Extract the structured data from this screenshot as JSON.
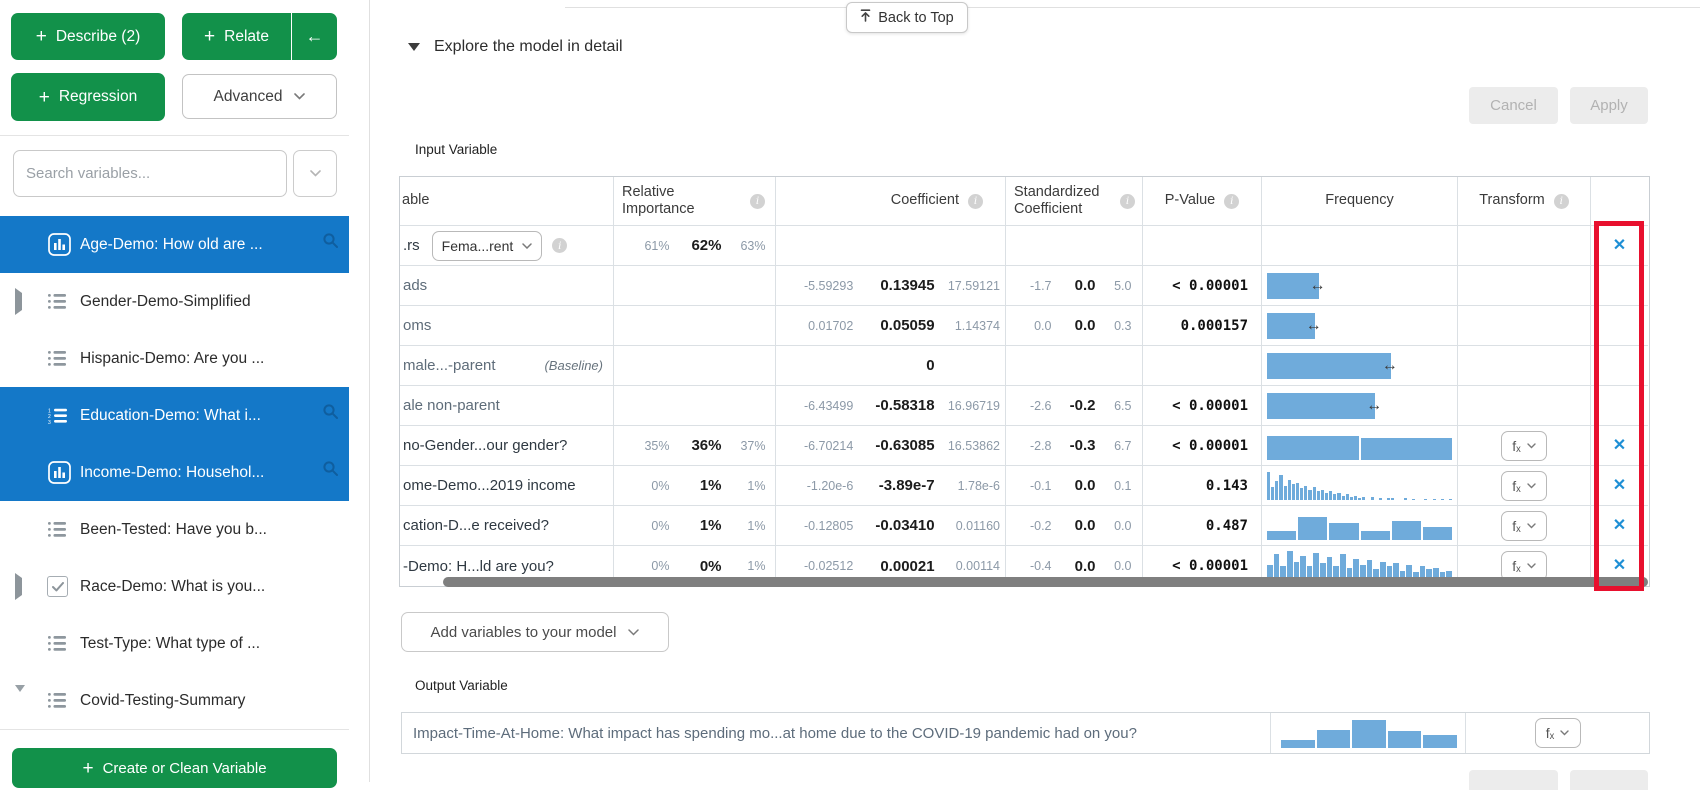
{
  "icons": {
    "plus": "+",
    "back_arrow": "←",
    "close": "✕",
    "error_bar": "↔",
    "fx": "fₓ",
    "info": "i"
  },
  "colors": {
    "accent_green": "#12914A",
    "selection_blue": "#1478C8",
    "histogram_blue": "#6FABDB",
    "highlight_red": "#E8102E",
    "remove_x_blue": "#1E8FD5"
  },
  "sidebar": {
    "describe_label": "Describe (2)",
    "relate_label": "Relate",
    "regression_label": "Regression",
    "advanced_label": "Advanced",
    "search_placeholder": "Search variables...",
    "create_label": "Create or Clean Variable",
    "items": [
      {
        "label": "Age-Demo: How old are ...",
        "icon": "bar-chart",
        "selected": true
      },
      {
        "label": "Gender-Demo-Simplified",
        "icon": "list",
        "expander": "right"
      },
      {
        "label": "Hispanic-Demo: Are you ...",
        "icon": "list"
      },
      {
        "label": "Education-Demo: What i...",
        "icon": "ordered-list",
        "selected": true
      },
      {
        "label": "Income-Demo: Househol...",
        "icon": "bar-chart",
        "selected": true
      },
      {
        "label": "Been-Tested: Have you b...",
        "icon": "list"
      },
      {
        "label": "Race-Demo: What is you...",
        "icon": "checkbox-checked",
        "expander": "right"
      },
      {
        "label": "Test-Type: What type of ...",
        "icon": "list"
      },
      {
        "label": "Covid-Testing-Summary",
        "icon": "list",
        "expander": "down"
      }
    ]
  },
  "main": {
    "back_to_top": "Back to Top",
    "section_title": "Explore the model in detail",
    "cancel_label": "Cancel",
    "apply_label": "Apply",
    "input_variable_label": "Input Variable",
    "add_variables_label": "Add variables to your model",
    "output_variable_label": "Output Variable",
    "table": {
      "headers": {
        "variable": "able",
        "relative_importance": "Relative Importance",
        "coefficient": "Coefficient",
        "standardized_coefficient": "Standardized Coefficient",
        "p_value": "P-Value",
        "frequency": "Frequency",
        "transform": "Transform"
      },
      "rows": [
        {
          "label": ".rs",
          "dropdown_value": "Fema...rent",
          "ri": [
            "61%",
            "62%",
            "63%"
          ]
        },
        {
          "label": "ads",
          "coef": [
            "-5.59293",
            "0.13945",
            "17.59121"
          ],
          "std": [
            "-1.7",
            "0.0",
            "5.0"
          ],
          "p": "< 0.00001",
          "bar": {
            "width": 0.29
          }
        },
        {
          "label": "oms",
          "coef": [
            "0.01702",
            "0.05059",
            "1.14374"
          ],
          "std": [
            "0.0",
            "0.0",
            "0.3"
          ],
          "p": "0.000157",
          "bar": {
            "width": 0.27
          }
        },
        {
          "label": "male...-parent",
          "baseline": "(Baseline)",
          "coef_mid": "0",
          "bar": {
            "width": 0.66
          }
        },
        {
          "label": "ale non-parent",
          "coef": [
            "-6.43499",
            "-0.58318",
            "16.96719"
          ],
          "std": [
            "-2.6",
            "-0.2",
            "6.5"
          ],
          "p": "< 0.00001",
          "bar": {
            "width": 0.58
          }
        },
        {
          "label": "no-Gender...our gender?",
          "ri": [
            "35%",
            "36%",
            "37%"
          ],
          "coef": [
            "-6.70214",
            "-0.63085",
            "16.53862"
          ],
          "std": [
            "-2.8",
            "-0.3",
            "6.7"
          ],
          "p": "< 0.00001",
          "hist": [
            0.82,
            0.76
          ]
        },
        {
          "label": "ome-Demo...2019 income",
          "ri": [
            "0%",
            "1%",
            "1%"
          ],
          "coef": [
            "-1.20e-6",
            "-3.89e-7",
            "1.78e-6"
          ],
          "std": [
            "-0.1",
            "0.0",
            "0.1"
          ],
          "p": "0.143",
          "hist": [
            0.95,
            0.45,
            0.65,
            0.85,
            0.5,
            0.7,
            0.55,
            0.6,
            0.4,
            0.5,
            0.35,
            0.45,
            0.3,
            0.35,
            0.25,
            0.3,
            0.2,
            0.25,
            0.15,
            0.2,
            0.1,
            0.15,
            0.08,
            0.12,
            0,
            0.1,
            0,
            0.08,
            0,
            0.06,
            0.08,
            0,
            0,
            0.06,
            0,
            0.05,
            0,
            0,
            0.05,
            0,
            0.04,
            0,
            0.04,
            0,
            0.03
          ]
        },
        {
          "label": "cation-D...e received?",
          "ri": [
            "0%",
            "1%",
            "1%"
          ],
          "coef": [
            "-0.12805",
            "-0.03410",
            "0.01160"
          ],
          "std": [
            "-0.2",
            "0.0",
            "0.0"
          ],
          "p": "0.487",
          "hist": [
            0.32,
            0.8,
            0.58,
            0.3,
            0.65,
            0.45
          ]
        },
        {
          "label": "-Demo: H...ld are you?",
          "ri": [
            "0%",
            "0%",
            "1%"
          ],
          "coef": [
            "-0.02512",
            "0.00021",
            "0.00114"
          ],
          "std": [
            "-0.4",
            "0.0",
            "0.0"
          ],
          "p": "< 0.00001",
          "hist": [
            0.55,
            0.9,
            0.5,
            1,
            0.65,
            0.85,
            0.5,
            0.95,
            0.6,
            0.8,
            0.5,
            0.9,
            0.45,
            0.75,
            0.55,
            0.7,
            0.4,
            0.65,
            0.5,
            0.6,
            0.35,
            0.55,
            0.3,
            0.5,
            0.4,
            0.45,
            0.3,
            0.35
          ]
        }
      ]
    },
    "output_row": {
      "label": "Impact-Time-At-Home: What impact has spending mo...at home due to the COVID-19 pandemic had on you?",
      "hist": [
        0.28,
        0.62,
        0.95,
        0.58,
        0.45
      ]
    }
  }
}
